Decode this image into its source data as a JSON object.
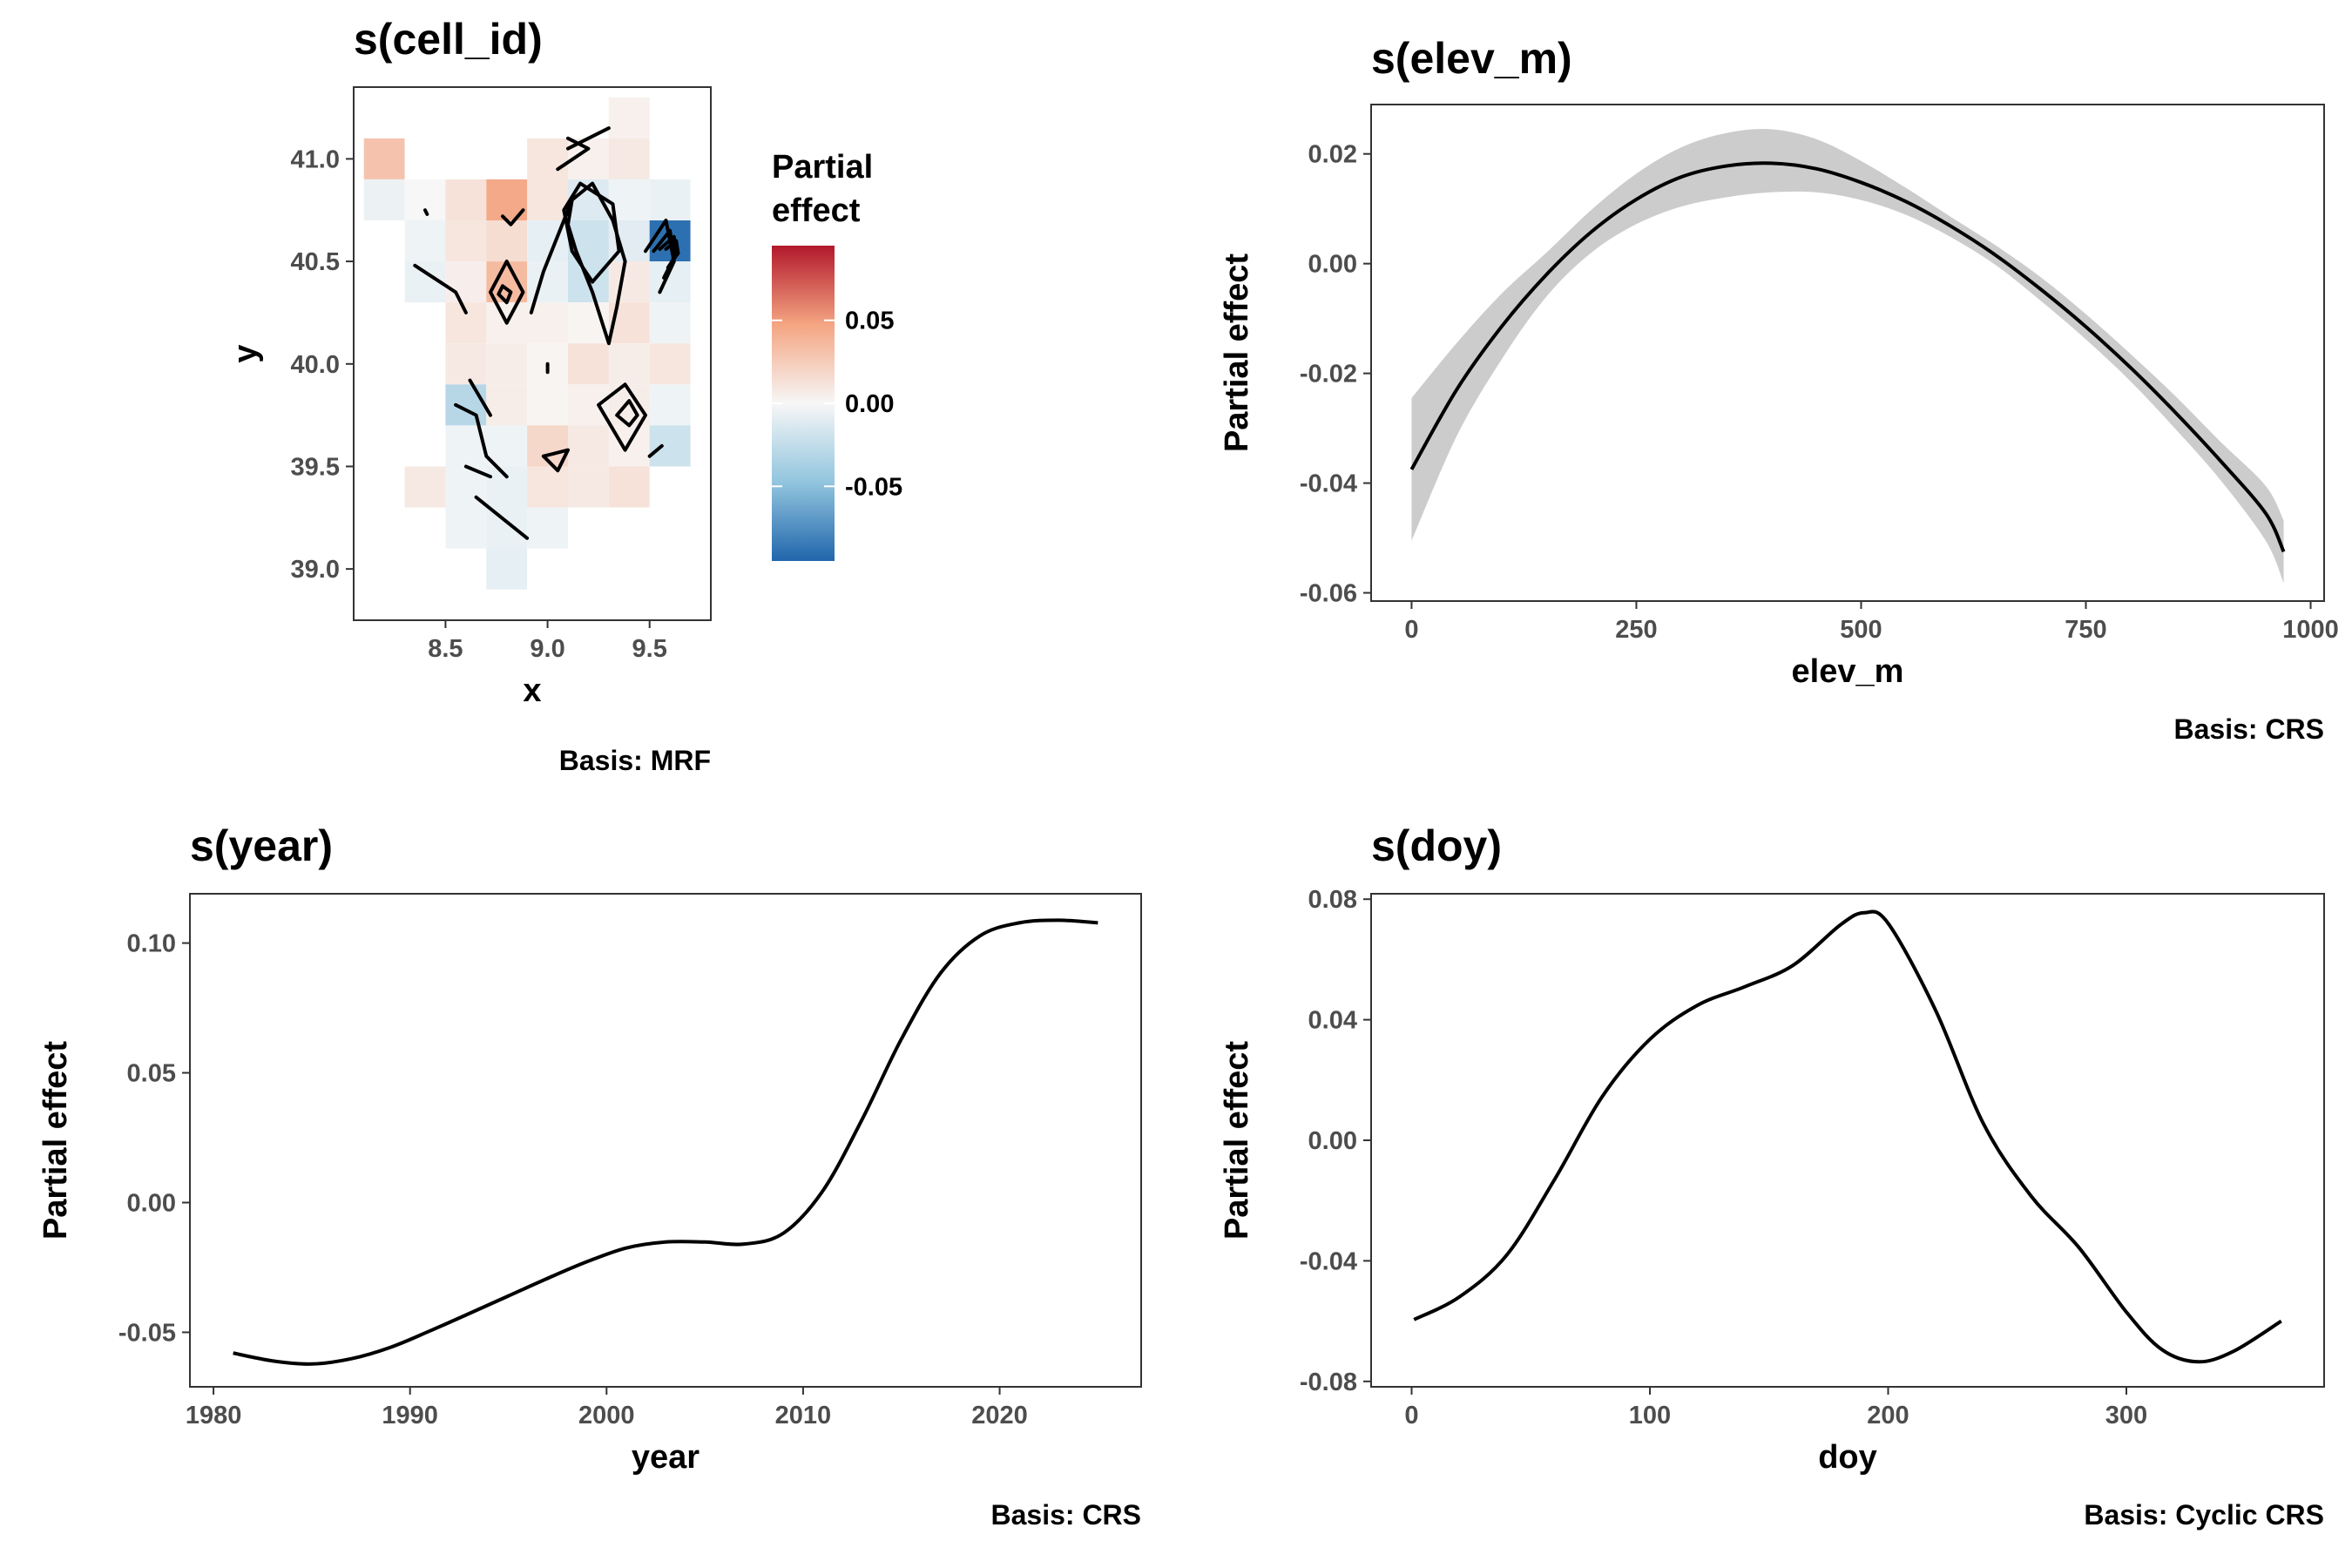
{
  "chart_data": [
    {
      "type": "heatmap",
      "title": "s(cell_id)",
      "xlabel": "x",
      "ylabel": "y",
      "caption": "Basis: MRF",
      "xlim": [
        8.05,
        9.8
      ],
      "ylim": [
        38.75,
        41.35
      ],
      "xticks": [
        8.5,
        9.0,
        9.5
      ],
      "xtick_labels": [
        "8.5",
        "9.0",
        "9.5"
      ],
      "yticks": [
        39.0,
        39.5,
        40.0,
        40.5,
        41.0
      ],
      "ytick_labels": [
        "39.0",
        "39.5",
        "40.0",
        "40.5",
        "41.0"
      ],
      "legend": {
        "title": [
          "Partial",
          "effect"
        ],
        "range": [
          -0.095,
          0.095
        ],
        "ticks": [
          0.05,
          0.0,
          -0.05
        ],
        "tick_labels": [
          "0.05",
          "0.00",
          "-0.05"
        ],
        "colors": [
          "#2166ac",
          "#92c5de",
          "#f7f7f7",
          "#f4a582",
          "#b2182b"
        ]
      },
      "cells": [
        {
          "x": 9.4,
          "y": 41.2,
          "value": 0.004
        },
        {
          "x": 8.2,
          "y": 41.0,
          "value": 0.03
        },
        {
          "x": 9.0,
          "y": 41.0,
          "value": 0.01
        },
        {
          "x": 9.2,
          "y": 41.0,
          "value": 0.004
        },
        {
          "x": 9.4,
          "y": 41.0,
          "value": 0.008
        },
        {
          "x": 8.2,
          "y": 40.8,
          "value": -0.005
        },
        {
          "x": 8.4,
          "y": 40.8,
          "value": 0.0
        },
        {
          "x": 8.6,
          "y": 40.8,
          "value": 0.012
        },
        {
          "x": 8.8,
          "y": 40.8,
          "value": 0.045
        },
        {
          "x": 9.0,
          "y": 40.8,
          "value": 0.01
        },
        {
          "x": 9.2,
          "y": 40.8,
          "value": -0.012
        },
        {
          "x": 9.4,
          "y": 40.8,
          "value": -0.004
        },
        {
          "x": 9.6,
          "y": 40.8,
          "value": -0.006
        },
        {
          "x": 8.4,
          "y": 40.6,
          "value": -0.004
        },
        {
          "x": 8.6,
          "y": 40.6,
          "value": 0.01
        },
        {
          "x": 8.8,
          "y": 40.6,
          "value": 0.015
        },
        {
          "x": 9.0,
          "y": 40.6,
          "value": -0.008
        },
        {
          "x": 9.2,
          "y": 40.6,
          "value": -0.02
        },
        {
          "x": 9.4,
          "y": 40.6,
          "value": -0.01
        },
        {
          "x": 9.6,
          "y": 40.6,
          "value": -0.09
        },
        {
          "x": 8.4,
          "y": 40.4,
          "value": -0.006
        },
        {
          "x": 8.6,
          "y": 40.4,
          "value": 0.005
        },
        {
          "x": 8.8,
          "y": 40.4,
          "value": 0.035
        },
        {
          "x": 9.0,
          "y": 40.4,
          "value": -0.006
        },
        {
          "x": 9.2,
          "y": 40.4,
          "value": -0.02
        },
        {
          "x": 9.4,
          "y": 40.4,
          "value": 0.008
        },
        {
          "x": 9.6,
          "y": 40.4,
          "value": -0.008
        },
        {
          "x": 8.6,
          "y": 40.2,
          "value": 0.01
        },
        {
          "x": 8.8,
          "y": 40.2,
          "value": 0.004
        },
        {
          "x": 9.0,
          "y": 40.2,
          "value": 0.004
        },
        {
          "x": 9.2,
          "y": 40.2,
          "value": 0.002
        },
        {
          "x": 9.4,
          "y": 40.2,
          "value": 0.012
        },
        {
          "x": 9.6,
          "y": 40.2,
          "value": -0.004
        },
        {
          "x": 8.6,
          "y": 40.0,
          "value": 0.008
        },
        {
          "x": 8.8,
          "y": 40.0,
          "value": 0.006
        },
        {
          "x": 9.0,
          "y": 40.0,
          "value": 0.002
        },
        {
          "x": 9.2,
          "y": 40.0,
          "value": 0.012
        },
        {
          "x": 9.4,
          "y": 40.0,
          "value": 0.006
        },
        {
          "x": 9.6,
          "y": 40.0,
          "value": 0.01
        },
        {
          "x": 8.6,
          "y": 39.8,
          "value": -0.03
        },
        {
          "x": 8.8,
          "y": 39.8,
          "value": 0.006
        },
        {
          "x": 9.0,
          "y": 39.8,
          "value": 0.002
        },
        {
          "x": 9.2,
          "y": 39.8,
          "value": 0.004
        },
        {
          "x": 9.4,
          "y": 39.8,
          "value": 0.006
        },
        {
          "x": 9.6,
          "y": 39.8,
          "value": -0.004
        },
        {
          "x": 8.6,
          "y": 39.6,
          "value": -0.004
        },
        {
          "x": 8.8,
          "y": 39.6,
          "value": -0.004
        },
        {
          "x": 9.0,
          "y": 39.6,
          "value": 0.018
        },
        {
          "x": 9.2,
          "y": 39.6,
          "value": 0.008
        },
        {
          "x": 9.4,
          "y": 39.6,
          "value": 0.004
        },
        {
          "x": 9.6,
          "y": 39.6,
          "value": -0.02
        },
        {
          "x": 8.4,
          "y": 39.4,
          "value": 0.008
        },
        {
          "x": 8.6,
          "y": 39.4,
          "value": -0.004
        },
        {
          "x": 8.8,
          "y": 39.4,
          "value": -0.006
        },
        {
          "x": 9.0,
          "y": 39.4,
          "value": 0.01
        },
        {
          "x": 9.2,
          "y": 39.4,
          "value": 0.008
        },
        {
          "x": 9.4,
          "y": 39.4,
          "value": 0.012
        },
        {
          "x": 8.6,
          "y": 39.2,
          "value": -0.004
        },
        {
          "x": 8.8,
          "y": 39.2,
          "value": -0.006
        },
        {
          "x": 9.0,
          "y": 39.2,
          "value": -0.004
        },
        {
          "x": 8.8,
          "y": 39.0,
          "value": -0.008
        }
      ],
      "contours": [
        [
          [
            9.1,
            41.05
          ],
          [
            9.3,
            41.15
          ]
        ],
        [
          [
            9.05,
            40.95
          ],
          [
            9.2,
            41.05
          ],
          [
            9.1,
            41.1
          ]
        ],
        [
          [
            8.78,
            40.72
          ],
          [
            8.82,
            40.68
          ],
          [
            8.88,
            40.75
          ]
        ],
        [
          [
            8.92,
            40.25
          ],
          [
            8.98,
            40.45
          ],
          [
            9.12,
            40.8
          ],
          [
            9.22,
            40.88
          ],
          [
            9.32,
            40.7
          ],
          [
            9.38,
            40.5
          ],
          [
            9.34,
            40.28
          ],
          [
            9.3,
            40.1
          ],
          [
            9.22,
            40.35
          ],
          [
            9.14,
            40.55
          ],
          [
            9.1,
            40.68
          ],
          [
            9.12,
            40.8
          ]
        ],
        [
          [
            9.16,
            40.88
          ],
          [
            9.32,
            40.78
          ],
          [
            9.35,
            40.55
          ],
          [
            9.22,
            40.4
          ],
          [
            9.12,
            40.55
          ],
          [
            9.08,
            40.75
          ],
          [
            9.16,
            40.88
          ]
        ],
        [
          [
            9.48,
            40.55
          ],
          [
            9.58,
            40.7
          ],
          [
            9.62,
            40.5
          ],
          [
            9.55,
            40.35
          ]
        ],
        [
          [
            9.52,
            40.55
          ],
          [
            9.6,
            40.65
          ],
          [
            9.62,
            40.52
          ],
          [
            9.57,
            40.42
          ]
        ],
        [
          [
            9.55,
            40.56
          ],
          [
            9.62,
            40.62
          ],
          [
            9.63,
            40.53
          ],
          [
            9.59,
            40.47
          ]
        ],
        [
          [
            9.58,
            40.56
          ],
          [
            9.63,
            40.6
          ],
          [
            9.64,
            40.54
          ],
          [
            9.61,
            40.5
          ]
        ],
        [
          [
            8.8,
            40.5
          ],
          [
            8.72,
            40.35
          ],
          [
            8.8,
            40.2
          ],
          [
            8.88,
            40.35
          ],
          [
            8.8,
            40.5
          ]
        ],
        [
          [
            8.78,
            40.38
          ],
          [
            8.76,
            40.34
          ],
          [
            8.8,
            40.3
          ],
          [
            8.82,
            40.35
          ],
          [
            8.78,
            40.38
          ]
        ],
        [
          [
            8.35,
            40.48
          ],
          [
            8.55,
            40.35
          ],
          [
            8.6,
            40.25
          ]
        ],
        [
          [
            8.55,
            39.8
          ],
          [
            8.65,
            39.75
          ],
          [
            8.7,
            39.55
          ],
          [
            8.8,
            39.45
          ]
        ],
        [
          [
            8.62,
            39.92
          ],
          [
            8.72,
            39.75
          ]
        ],
        [
          [
            8.6,
            39.5
          ],
          [
            8.72,
            39.45
          ]
        ],
        [
          [
            8.98,
            39.55
          ],
          [
            9.05,
            39.48
          ],
          [
            9.1,
            39.58
          ],
          [
            8.98,
            39.55
          ]
        ],
        [
          [
            9.25,
            39.8
          ],
          [
            9.38,
            39.9
          ],
          [
            9.48,
            39.75
          ],
          [
            9.38,
            39.58
          ],
          [
            9.25,
            39.8
          ]
        ],
        [
          [
            9.34,
            39.75
          ],
          [
            9.4,
            39.82
          ],
          [
            9.44,
            39.75
          ],
          [
            9.4,
            39.7
          ],
          [
            9.34,
            39.75
          ]
        ],
        [
          [
            8.65,
            39.35
          ],
          [
            8.9,
            39.15
          ]
        ],
        [
          [
            9.5,
            39.55
          ],
          [
            9.56,
            39.6
          ]
        ],
        [
          [
            8.4,
            40.75
          ],
          [
            8.41,
            40.73
          ]
        ],
        [
          [
            9.0,
            40.0
          ],
          [
            9.0,
            39.96
          ]
        ]
      ]
    },
    {
      "type": "line",
      "title": "s(elev_m)",
      "xlabel": "elev_m",
      "ylabel": "Partial effect",
      "caption": "Basis: CRS",
      "xlim": [
        -45,
        1015
      ],
      "ylim": [
        -0.0615,
        0.029
      ],
      "xticks": [
        0,
        250,
        500,
        750,
        1000
      ],
      "xtick_labels": [
        "0",
        "250",
        "500",
        "750",
        "1000"
      ],
      "yticks": [
        0.02,
        0.0,
        -0.02,
        -0.04,
        -0.06
      ],
      "ytick_labels": [
        "0.02",
        "0.00",
        "-0.02",
        "-0.04",
        "-0.06"
      ],
      "x": [
        0,
        50,
        100,
        150,
        200,
        250,
        300,
        350,
        400,
        450,
        500,
        550,
        600,
        650,
        700,
        750,
        800,
        850,
        900,
        950,
        970
      ],
      "y": [
        -0.0375,
        -0.023,
        -0.0115,
        -0.002,
        0.0058,
        0.0117,
        0.0158,
        0.0178,
        0.0183,
        0.0173,
        0.0148,
        0.0113,
        0.0068,
        0.0015,
        -0.0047,
        -0.0115,
        -0.019,
        -0.0272,
        -0.036,
        -0.0455,
        -0.0525
      ],
      "lower": [
        -0.0505,
        -0.0315,
        -0.0175,
        -0.006,
        0.002,
        0.0072,
        0.0104,
        0.0121,
        0.013,
        0.013,
        0.0116,
        0.0089,
        0.0048,
        -0.0003,
        -0.0068,
        -0.0138,
        -0.0215,
        -0.0302,
        -0.0395,
        -0.0505,
        -0.0582
      ],
      "upper": [
        -0.0245,
        -0.0145,
        -0.0055,
        0.002,
        0.0098,
        0.0164,
        0.0212,
        0.0238,
        0.0245,
        0.0227,
        0.0187,
        0.0138,
        0.0085,
        0.0033,
        -0.0025,
        -0.0092,
        -0.0165,
        -0.0242,
        -0.0325,
        -0.0405,
        -0.0468
      ]
    },
    {
      "type": "line",
      "title": "s(year)",
      "xlabel": "year",
      "ylabel": "Partial effect",
      "caption": "Basis: CRS",
      "xlim": [
        1978.8,
        2027.2
      ],
      "ylim": [
        -0.071,
        0.119
      ],
      "xticks": [
        1980,
        1990,
        2000,
        2010,
        2020
      ],
      "xtick_labels": [
        "1980",
        "1990",
        "2000",
        "2010",
        "2020"
      ],
      "yticks": [
        0.1,
        0.05,
        0.0,
        -0.05
      ],
      "ytick_labels": [
        "0.10",
        "0.05",
        "0.00",
        "-0.05"
      ],
      "x": [
        1981,
        1983,
        1985,
        1987,
        1989,
        1991,
        1993,
        1995,
        1997,
        1999,
        2001,
        2003,
        2005,
        2007,
        2009,
        2011,
        2013,
        2015,
        2017,
        2019,
        2021,
        2023,
        2025
      ],
      "y": [
        -0.058,
        -0.061,
        -0.0622,
        -0.0602,
        -0.0558,
        -0.0495,
        -0.0428,
        -0.036,
        -0.0292,
        -0.0228,
        -0.0175,
        -0.0152,
        -0.0152,
        -0.016,
        -0.0118,
        0.0045,
        0.032,
        0.063,
        0.0885,
        0.1028,
        0.1078,
        0.1088,
        0.1078
      ]
    },
    {
      "type": "line",
      "title": "s(doy)",
      "xlabel": "doy",
      "ylabel": "Partial effect",
      "caption": "Basis: Cyclic CRS",
      "xlim": [
        -17,
        383
      ],
      "ylim": [
        -0.0818,
        0.0818
      ],
      "xticks": [
        0,
        100,
        200,
        300
      ],
      "xtick_labels": [
        "0",
        "100",
        "200",
        "300"
      ],
      "yticks": [
        0.08,
        0.04,
        0.0,
        -0.04,
        -0.08
      ],
      "ytick_labels": [
        "0.08",
        "0.04",
        "0.00",
        "-0.04",
        "-0.08"
      ],
      "x": [
        1,
        20,
        40,
        60,
        80,
        100,
        120,
        140,
        160,
        180,
        190,
        200,
        220,
        240,
        260,
        280,
        300,
        315,
        330,
        345,
        365
      ],
      "y": [
        -0.0595,
        -0.052,
        -0.038,
        -0.013,
        0.0145,
        0.0335,
        0.0448,
        0.051,
        0.058,
        0.0715,
        0.0755,
        0.072,
        0.043,
        0.0055,
        -0.0185,
        -0.0355,
        -0.057,
        -0.0695,
        -0.0735,
        -0.07,
        -0.06
      ]
    }
  ]
}
